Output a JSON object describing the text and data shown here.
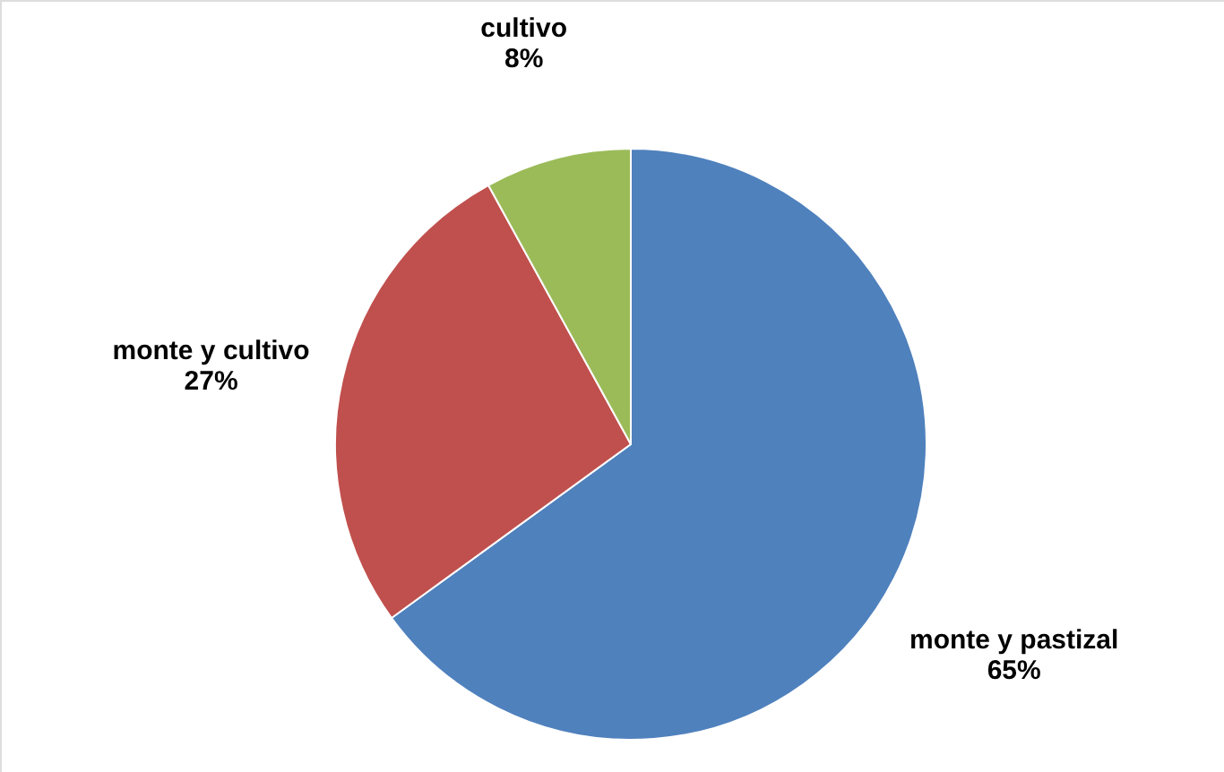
{
  "chart_data": {
    "type": "pie",
    "categories": [
      "monte y pastizal",
      "monte y cultivo",
      "cultivo"
    ],
    "values": [
      65,
      27,
      8
    ],
    "colors": [
      "#4f81bd",
      "#c0504d",
      "#9bbb59"
    ],
    "value_labels": [
      "65%",
      "27%",
      "8%"
    ]
  }
}
